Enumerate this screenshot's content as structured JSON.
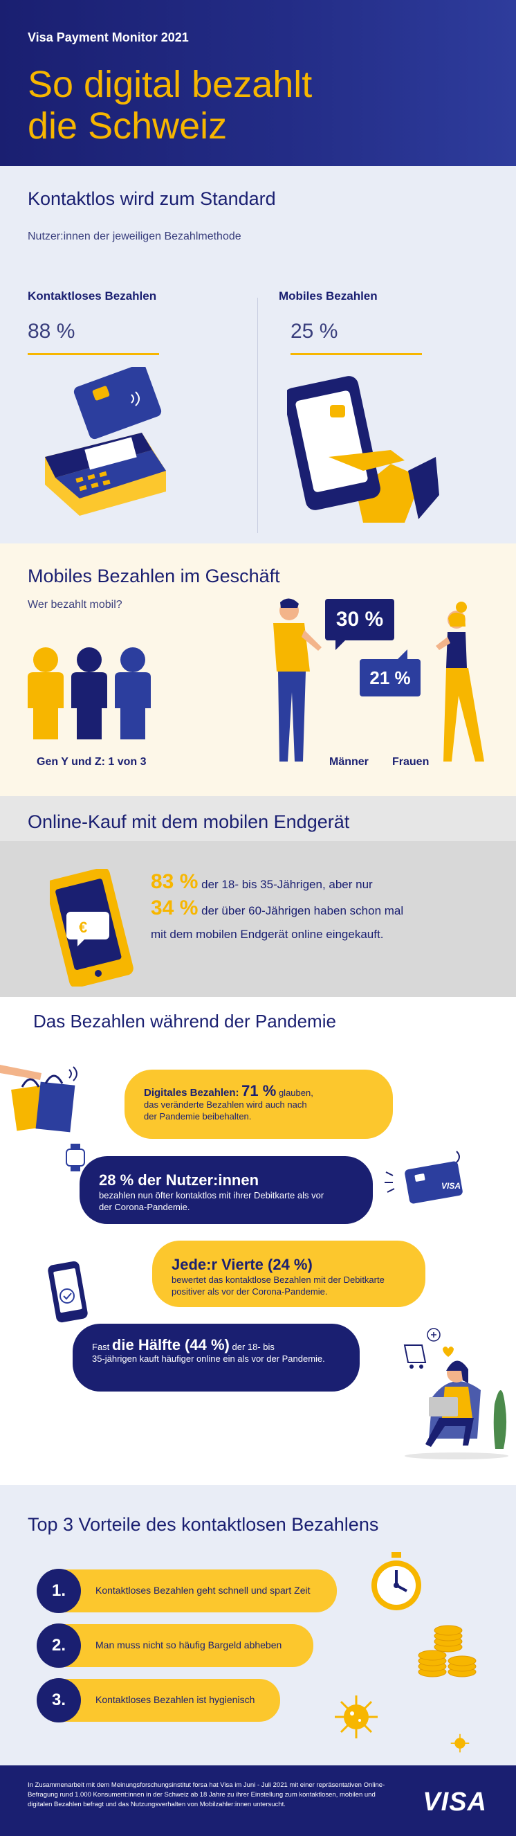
{
  "header": {
    "brand": "Visa Payment Monitor 2021",
    "title_line1": "So digital bezahlt",
    "title_line2": "die Schweiz"
  },
  "contactless": {
    "heading": "Kontaktlos wird zum Standard",
    "subheading": "Nutzer:innen der jeweiligen Bezahlmethode",
    "left_label": "Kontaktloses Bezahlen",
    "left_value": "88 %",
    "right_label": "Mobiles Bezahlen",
    "right_value": "25 %"
  },
  "mobile_store": {
    "heading": "Mobiles Bezahlen im Geschäft",
    "question": "Wer bezahlt mobil?",
    "gen_label": "Gen Y und Z: 1 von 3",
    "men_pct": "30 %",
    "women_pct": "21 %",
    "men_label": "Männer",
    "women_label": "Frauen"
  },
  "online": {
    "heading": "Online-Kauf mit dem mobilen Endgerät",
    "pct1": "83 %",
    "text1": "der 18- bis 35-Jährigen, aber nur",
    "pct2": "34 %",
    "text2": "der über 60-Jährigen haben schon mal",
    "text3": "mit dem mobilen Endgerät online eingekauft."
  },
  "pandemic": {
    "heading": "Das Bezahlen während der Pandemie",
    "b1_lead": "Digitales Bezahlen:",
    "b1_pct": "71 %",
    "b1_rest": "glauben,",
    "b1_line2": "das veränderte Bezahlen wird auch nach",
    "b1_line3": "der Pandemie beibehalten.",
    "b2_lead": "28 % der Nutzer:innen",
    "b2_line1": "bezahlen nun öfter kontaktlos mit ihrer Debitkarte als vor",
    "b2_line2": "der Corona-Pandemie.",
    "b3_lead": "Jede:r Vierte (24 %)",
    "b3_line1": "bewertet das kontaktlose Bezahlen mit der Debitkarte",
    "b3_line2": "positiver als vor der Corona-Pandemie.",
    "b4_pre": "Fast",
    "b4_lead": "die Hälfte (44 %)",
    "b4_rest": "der 18- bis",
    "b4_line2": "35-jährigen kauft häufiger online ein als vor der Pandemie.",
    "card_brand": "VISA"
  },
  "advantages": {
    "heading": "Top 3 Vorteile des kontaktlosen Bezahlens",
    "items": [
      {
        "num": "1.",
        "text": "Kontaktloses Bezahlen geht schnell und spart Zeit"
      },
      {
        "num": "2.",
        "text": "Man muss nicht so häufig Bargeld abheben"
      },
      {
        "num": "3.",
        "text": "Kontaktloses Bezahlen ist hygienisch"
      }
    ]
  },
  "footer": {
    "note": "In Zusammenarbeit mit dem Meinungsforschungsinstitut forsa hat Visa im Juni - Juli 2021 mit einer repräsentativen Online-Befragung rund 1.000 Konsument:innen in der Schweiz ab 18 Jahre zu ihrer Einstellung zum kontaktlosen, mobilen und digitalen Bezahlen befragt und das Nutzungsverhalten von Mobilzahler:innen untersucht.",
    "logo": "VISA"
  },
  "colors": {
    "navy": "#1a1f71",
    "yellow": "#f7b600",
    "blue": "#2c3e9e"
  }
}
